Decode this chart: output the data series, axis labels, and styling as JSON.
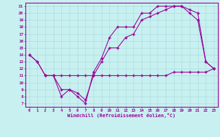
{
  "xlabel": "Windchill (Refroidissement éolien,°C)",
  "bg_color": "#c8f0f0",
  "line_color": "#990099",
  "grid_color": "#aadddd",
  "xlim": [
    -0.5,
    23.5
  ],
  "ylim": [
    6.5,
    21.5
  ],
  "x_ticks": [
    0,
    1,
    2,
    3,
    4,
    5,
    6,
    7,
    8,
    9,
    10,
    11,
    12,
    13,
    14,
    15,
    16,
    17,
    18,
    19,
    20,
    21,
    22,
    23
  ],
  "y_ticks": [
    7,
    8,
    9,
    10,
    11,
    12,
    13,
    14,
    15,
    16,
    17,
    18,
    19,
    20,
    21
  ],
  "line1_x": [
    0,
    1,
    2,
    3,
    4,
    5,
    6,
    7,
    8,
    9,
    10,
    11,
    12,
    13,
    14,
    15,
    16,
    17,
    18,
    19,
    20,
    21,
    22,
    23
  ],
  "line1_y": [
    14,
    13,
    11,
    11,
    8,
    9,
    8,
    7,
    11.5,
    13.5,
    16.5,
    18,
    18,
    18,
    20,
    20,
    21,
    21,
    21,
    21,
    20,
    19,
    13,
    12
  ],
  "line2_x": [
    0,
    1,
    2,
    3,
    4,
    5,
    6,
    7,
    8,
    9,
    10,
    11,
    12,
    13,
    14,
    15,
    16,
    17,
    18,
    19,
    20,
    21,
    22,
    23
  ],
  "line2_y": [
    14,
    13,
    11,
    11,
    9,
    9,
    8.5,
    7.5,
    11,
    13,
    15,
    15,
    16.5,
    17,
    19,
    19.5,
    20,
    20.5,
    21,
    21,
    20.5,
    20,
    13,
    12
  ],
  "line3_x": [
    2,
    3,
    4,
    5,
    6,
    7,
    8,
    9,
    10,
    11,
    12,
    13,
    14,
    15,
    16,
    17,
    18,
    19,
    20,
    21,
    22,
    23
  ],
  "line3_y": [
    11,
    11,
    11,
    11,
    11,
    11,
    11,
    11,
    11,
    11,
    11,
    11,
    11,
    11,
    11,
    11,
    11.5,
    11.5,
    11.5,
    11.5,
    11.5,
    12
  ]
}
